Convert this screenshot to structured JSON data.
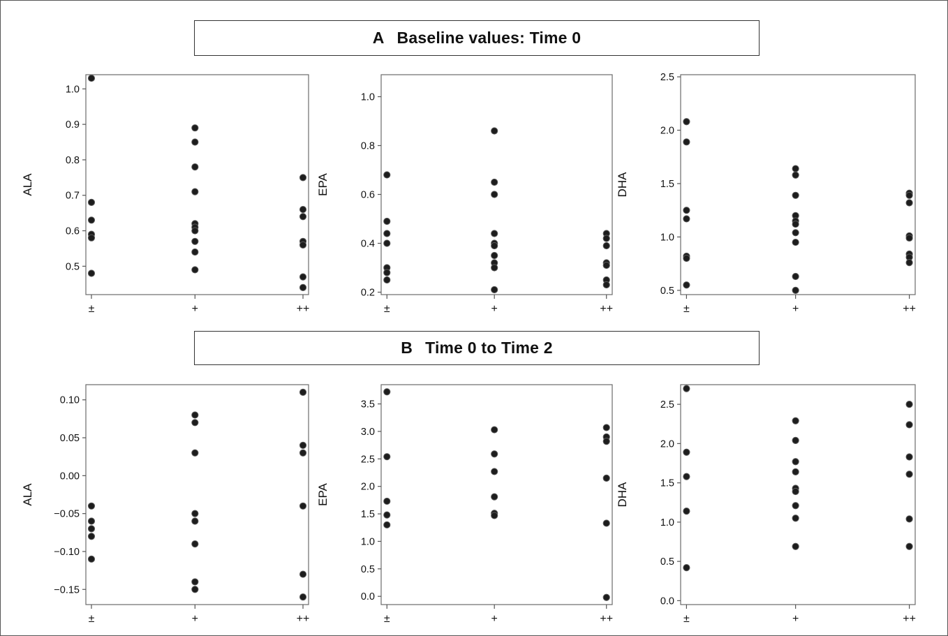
{
  "sections": [
    {
      "letter": "A",
      "title": "Baseline values: Time 0"
    },
    {
      "letter": "B",
      "title": "Time 0 to Time 2"
    }
  ],
  "chart_data": [
    {
      "type": "scatter",
      "section": "A",
      "ylabel": "ALA",
      "categories": [
        "±",
        "+",
        "++"
      ],
      "ylim": [
        0.42,
        1.04
      ],
      "yticks": [
        0.5,
        0.6,
        0.7,
        0.8,
        0.9,
        1.0
      ],
      "ytick_labels": [
        "0.5",
        "0.6",
        "0.7",
        "0.8",
        "0.9",
        "1.0"
      ],
      "points": [
        [
          1.03,
          0.68,
          0.63,
          0.59,
          0.58,
          0.48
        ],
        [
          0.89,
          0.85,
          0.78,
          0.71,
          0.62,
          0.61,
          0.6,
          0.57,
          0.54,
          0.49
        ],
        [
          0.75,
          0.66,
          0.64,
          0.57,
          0.56,
          0.47,
          0.44
        ]
      ]
    },
    {
      "type": "scatter",
      "section": "A",
      "ylabel": "EPA",
      "categories": [
        "±",
        "+",
        "++"
      ],
      "ylim": [
        0.19,
        1.09
      ],
      "yticks": [
        0.2,
        0.4,
        0.6,
        0.8,
        1.0
      ],
      "ytick_labels": [
        "0.2",
        "0.4",
        "0.6",
        "0.8",
        "1.0"
      ],
      "points": [
        [
          0.68,
          0.49,
          0.44,
          0.4,
          0.3,
          0.28,
          0.25
        ],
        [
          0.86,
          0.65,
          0.6,
          0.44,
          0.4,
          0.39,
          0.35,
          0.32,
          0.3,
          0.21
        ],
        [
          0.44,
          0.42,
          0.39,
          0.32,
          0.31,
          0.25,
          0.23
        ]
      ]
    },
    {
      "type": "scatter",
      "section": "A",
      "ylabel": "DHA",
      "categories": [
        "±",
        "+",
        "++"
      ],
      "ylim": [
        0.46,
        2.52
      ],
      "yticks": [
        0.5,
        1.0,
        1.5,
        2.0,
        2.5
      ],
      "ytick_labels": [
        "0.5",
        "1.0",
        "1.5",
        "2.0",
        "2.5"
      ],
      "points": [
        [
          2.08,
          1.89,
          1.25,
          1.17,
          0.82,
          0.8,
          0.55
        ],
        [
          1.64,
          1.58,
          1.39,
          1.2,
          1.15,
          1.12,
          1.04,
          0.95,
          0.63,
          0.5
        ],
        [
          1.41,
          1.39,
          1.32,
          1.01,
          0.99,
          0.84,
          0.81,
          0.76
        ]
      ]
    },
    {
      "type": "scatter",
      "section": "B",
      "ylabel": "ALA",
      "categories": [
        "±",
        "+",
        "++"
      ],
      "ylim": [
        -0.17,
        0.12
      ],
      "yticks": [
        -0.15,
        -0.1,
        -0.05,
        0.0,
        0.05,
        0.1
      ],
      "ytick_labels": [
        "−0.15",
        "−0.10",
        "−0.05",
        "0.00",
        "0.05",
        "0.10"
      ],
      "points": [
        [
          -0.04,
          -0.06,
          -0.07,
          -0.08,
          -0.11
        ],
        [
          0.08,
          0.07,
          0.03,
          -0.05,
          -0.06,
          -0.09,
          -0.14,
          -0.15
        ],
        [
          0.11,
          0.04,
          0.03,
          -0.04,
          -0.13,
          -0.16
        ]
      ]
    },
    {
      "type": "scatter",
      "section": "B",
      "ylabel": "EPA",
      "categories": [
        "±",
        "+",
        "++"
      ],
      "ylim": [
        -0.15,
        3.85
      ],
      "yticks": [
        0.0,
        0.5,
        1.0,
        1.5,
        2.0,
        2.5,
        3.0,
        3.5
      ],
      "ytick_labels": [
        "0.0",
        "0.5",
        "1.0",
        "1.5",
        "2.0",
        "2.5",
        "3.0",
        "3.5"
      ],
      "points": [
        [
          3.72,
          2.54,
          1.73,
          1.48,
          1.3
        ],
        [
          3.03,
          2.59,
          2.27,
          1.81,
          1.51,
          1.47
        ],
        [
          3.07,
          2.9,
          2.82,
          2.15,
          1.33,
          -0.02
        ]
      ]
    },
    {
      "type": "scatter",
      "section": "B",
      "ylabel": "DHA",
      "categories": [
        "±",
        "+",
        "++"
      ],
      "ylim": [
        -0.05,
        2.75
      ],
      "yticks": [
        0.0,
        0.5,
        1.0,
        1.5,
        2.0,
        2.5
      ],
      "ytick_labels": [
        "0.0",
        "0.5",
        "1.0",
        "1.5",
        "2.0",
        "2.5"
      ],
      "points": [
        [
          2.7,
          1.89,
          1.58,
          1.14,
          0.42
        ],
        [
          2.29,
          2.04,
          1.77,
          1.64,
          1.43,
          1.39,
          1.21,
          1.05,
          0.69
        ],
        [
          2.5,
          2.24,
          1.83,
          1.61,
          1.04,
          0.69
        ]
      ]
    }
  ]
}
